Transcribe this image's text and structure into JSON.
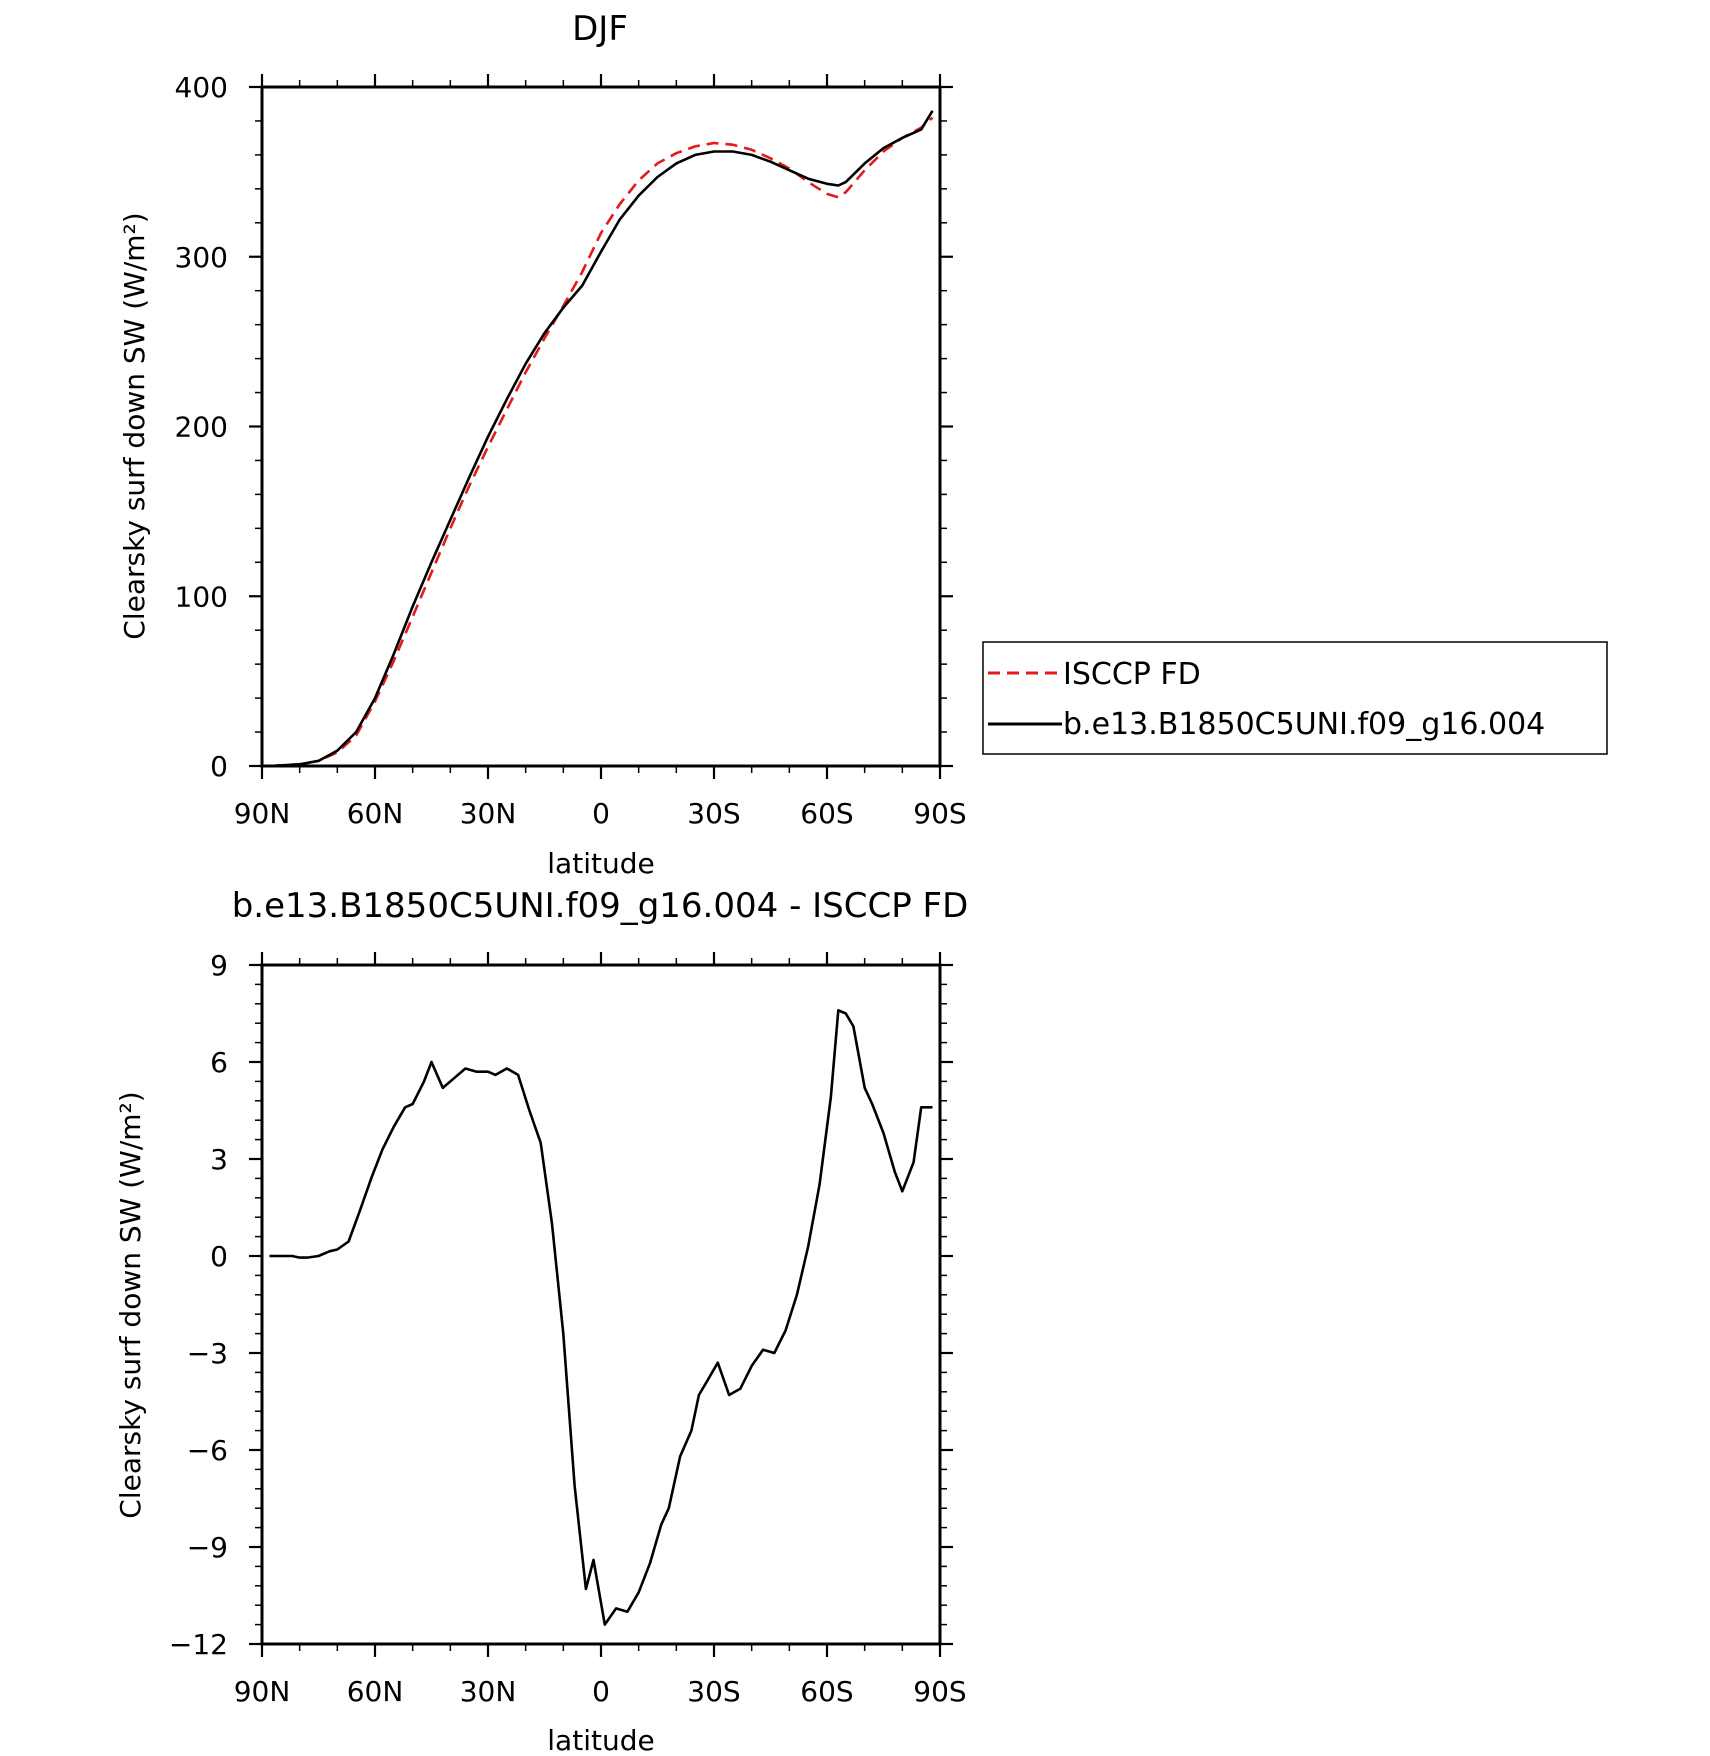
{
  "chart_data": [
    {
      "type": "line",
      "title": "DJF",
      "xlabel": "latitude",
      "ylabel": "Clearsky surf down SW (W/m²)",
      "x_direction": "90N to 90S",
      "xlim": [
        90,
        -90
      ],
      "ylim": [
        0,
        400
      ],
      "x_tick_values": [
        90,
        60,
        30,
        0,
        -30,
        -60,
        -90
      ],
      "x_tick_labels": [
        "90N",
        "60N",
        "30N",
        "0",
        "30S",
        "60S",
        "90S"
      ],
      "y_tick_values": [
        0,
        100,
        200,
        300,
        400
      ],
      "y_tick_labels": [
        "0",
        "100",
        "200",
        "300",
        "400"
      ],
      "legend": {
        "placement": "right",
        "entries": [
          "ISCCP FD",
          "b.e13.B1850C5UNI.f09_g16.004"
        ]
      },
      "series": [
        {
          "name": "ISCCP FD",
          "color": "#e41a1c",
          "style": "dashed",
          "x": [
            88,
            80,
            75,
            70,
            65,
            60,
            55,
            50,
            45,
            40,
            35,
            30,
            25,
            20,
            15,
            10,
            5,
            0,
            -5,
            -10,
            -15,
            -20,
            -25,
            -30,
            -35,
            -40,
            -45,
            -50,
            -55,
            -60,
            -63,
            -65,
            -70,
            -75,
            -80,
            -85,
            -88
          ],
          "y": [
            0,
            1,
            3,
            8,
            18,
            38,
            62,
            88,
            114,
            140,
            165,
            188,
            210,
            232,
            252,
            271,
            291,
            314,
            331,
            345,
            355,
            361,
            365,
            367,
            366,
            363,
            358,
            352,
            344,
            337,
            335,
            338,
            351,
            362,
            370,
            376,
            382
          ]
        },
        {
          "name": "b.e13.B1850C5UNI.f09_g16.004",
          "color": "#000000",
          "style": "solid",
          "x": [
            88,
            80,
            75,
            70,
            65,
            60,
            55,
            50,
            45,
            40,
            35,
            30,
            25,
            20,
            15,
            10,
            5,
            0,
            -5,
            -10,
            -15,
            -20,
            -25,
            -30,
            -35,
            -40,
            -45,
            -50,
            -55,
            -60,
            -63,
            -65,
            -70,
            -75,
            -80,
            -85,
            -88
          ],
          "y": [
            0,
            1,
            3,
            9,
            20,
            40,
            66,
            94,
            120,
            145,
            170,
            194,
            216,
            237,
            255,
            270,
            283,
            303,
            322,
            336,
            347,
            355,
            360,
            362,
            362,
            360,
            356,
            351,
            346,
            343,
            342,
            344,
            355,
            364,
            370,
            375,
            386
          ]
        }
      ]
    },
    {
      "type": "line",
      "title": "b.e13.B1850C5UNI.f09_g16.004 - ISCCP FD",
      "xlabel": "latitude",
      "ylabel": "Clearsky surf down SW (W/m²)",
      "x_direction": "90N to 90S",
      "xlim": [
        90,
        -90
      ],
      "ylim": [
        -12,
        9
      ],
      "x_tick_values": [
        90,
        60,
        30,
        0,
        -30,
        -60,
        -90
      ],
      "x_tick_labels": [
        "90N",
        "60N",
        "30N",
        "0",
        "30S",
        "60S",
        "90S"
      ],
      "y_tick_values": [
        9,
        6,
        3,
        0,
        -3,
        -6,
        -9,
        -12
      ],
      "y_tick_labels": [
        "9",
        "6",
        "3",
        "0",
        "−3",
        "−6",
        "−9",
        "−12"
      ],
      "series": [
        {
          "color": "#000000",
          "style": "solid",
          "x": [
            88,
            85,
            82,
            80,
            78,
            75,
            72,
            70,
            67,
            64,
            61,
            58,
            55,
            52,
            50,
            47,
            45,
            42,
            39,
            36,
            33,
            30,
            28,
            25,
            22,
            19,
            16,
            13,
            10,
            7,
            4,
            2,
            -1,
            -4,
            -7,
            -10,
            -13,
            -16,
            -18,
            -21,
            -24,
            -26,
            -28,
            -31,
            -34,
            -37,
            -40,
            -43,
            -46,
            -49,
            -52,
            -55,
            -58,
            -61,
            -63,
            -65,
            -67,
            -70,
            -72,
            -75,
            -78,
            -80,
            -83,
            -85,
            -88
          ],
          "y": [
            0,
            0,
            0,
            -0.05,
            -0.05,
            0,
            0.15,
            0.2,
            0.45,
            1.4,
            2.4,
            3.3,
            4.0,
            4.6,
            4.7,
            5.4,
            6.0,
            5.2,
            5.5,
            5.8,
            5.7,
            5.7,
            5.6,
            5.8,
            5.6,
            4.5,
            3.5,
            1.0,
            -2.4,
            -7.1,
            -10.3,
            -9.4,
            -11.4,
            -10.9,
            -11.0,
            -10.4,
            -9.5,
            -8.3,
            -7.8,
            -6.2,
            -5.4,
            -4.3,
            -3.9,
            -3.3,
            -4.3,
            -4.1,
            -3.4,
            -2.9,
            -3.0,
            -2.3,
            -1.2,
            0.3,
            2.2,
            4.9,
            7.6,
            7.5,
            7.1,
            5.2,
            4.7,
            3.8,
            2.6,
            2.0,
            2.9,
            4.6,
            4.6
          ]
        }
      ]
    }
  ]
}
